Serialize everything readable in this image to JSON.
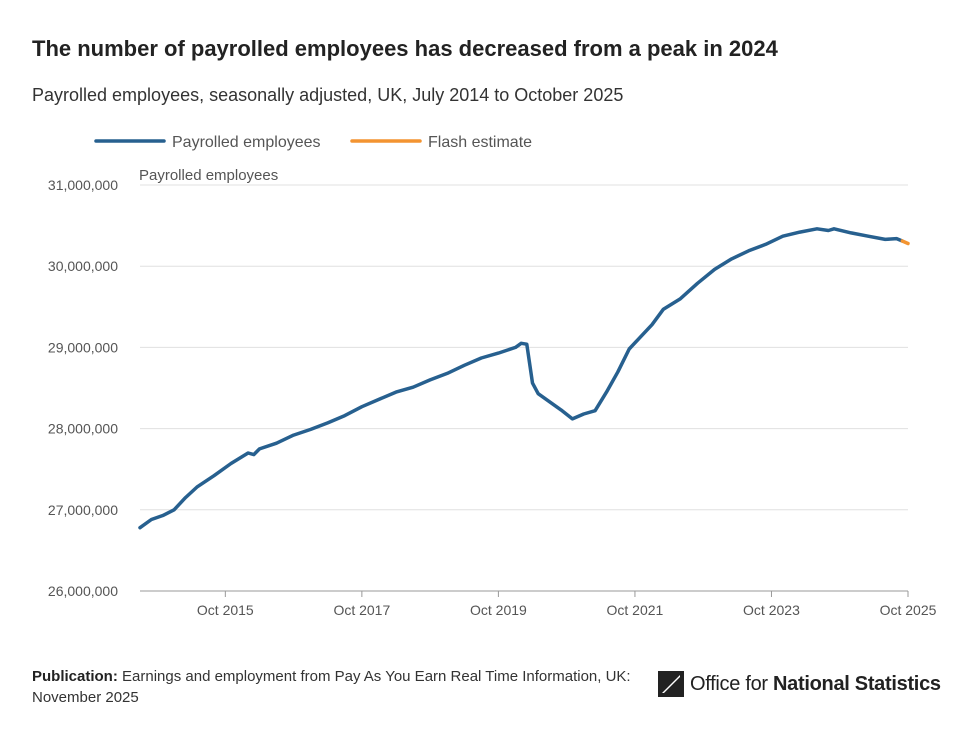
{
  "title": "The number of payrolled employees has decreased from a peak in 2024",
  "subtitle": "Payrolled employees, seasonally adjusted, UK, July 2014 to October 2025",
  "footer": {
    "publication_label": "Publication:",
    "publication_text": "Earnings and employment from Pay As You Earn Real Time Information, UK: November 2025"
  },
  "logo": {
    "icon": "ons-logo-icon",
    "text_regular": "Office for ",
    "text_bold": "National Statistics"
  },
  "colors": {
    "series_main": "#27608f",
    "series_flash": "#f39431",
    "gridline": "#e0e0e0",
    "axis_text": "#555555"
  },
  "chart_data": {
    "type": "line",
    "ylabel": "Payrolled employees",
    "ylim": [
      26000000,
      31000000
    ],
    "yticks": [
      26000000,
      27000000,
      28000000,
      29000000,
      30000000,
      31000000
    ],
    "ytick_labels": [
      "26,000,000",
      "27,000,000",
      "28,000,000",
      "29,000,000",
      "30,000,000",
      "31,000,000"
    ],
    "xlim": [
      "2014-07",
      "2025-10"
    ],
    "xticks": [
      "2015-10",
      "2017-10",
      "2019-10",
      "2021-10",
      "2023-10",
      "2025-10"
    ],
    "xtick_labels": [
      "Oct 2015",
      "Oct 2017",
      "Oct 2019",
      "Oct 2021",
      "Oct 2023",
      "Oct 2025"
    ],
    "grid": true,
    "legend_position": "top-left",
    "series": [
      {
        "name": "Payrolled employees",
        "points": [
          [
            "2014-07",
            26780000
          ],
          [
            "2014-09",
            26880000
          ],
          [
            "2014-11",
            26930000
          ],
          [
            "2015-01",
            27000000
          ],
          [
            "2015-03",
            27150000
          ],
          [
            "2015-05",
            27280000
          ],
          [
            "2015-08",
            27420000
          ],
          [
            "2015-11",
            27570000
          ],
          [
            "2016-02",
            27700000
          ],
          [
            "2016-03",
            27680000
          ],
          [
            "2016-04",
            27750000
          ],
          [
            "2016-07",
            27820000
          ],
          [
            "2016-10",
            27920000
          ],
          [
            "2017-01",
            27990000
          ],
          [
            "2017-04",
            28070000
          ],
          [
            "2017-07",
            28160000
          ],
          [
            "2017-10",
            28270000
          ],
          [
            "2018-01",
            28360000
          ],
          [
            "2018-04",
            28450000
          ],
          [
            "2018-07",
            28510000
          ],
          [
            "2018-10",
            28600000
          ],
          [
            "2019-01",
            28680000
          ],
          [
            "2019-04",
            28780000
          ],
          [
            "2019-07",
            28870000
          ],
          [
            "2019-10",
            28930000
          ],
          [
            "2020-01",
            29000000
          ],
          [
            "2020-02",
            29050000
          ],
          [
            "2020-03",
            29040000
          ],
          [
            "2020-04",
            28560000
          ],
          [
            "2020-05",
            28430000
          ],
          [
            "2020-07",
            28330000
          ],
          [
            "2020-09",
            28230000
          ],
          [
            "2020-11",
            28120000
          ],
          [
            "2021-01",
            28180000
          ],
          [
            "2021-03",
            28220000
          ],
          [
            "2021-05",
            28450000
          ],
          [
            "2021-07",
            28700000
          ],
          [
            "2021-09",
            28980000
          ],
          [
            "2021-11",
            29130000
          ],
          [
            "2022-01",
            29280000
          ],
          [
            "2022-03",
            29470000
          ],
          [
            "2022-06",
            29600000
          ],
          [
            "2022-09",
            29790000
          ],
          [
            "2022-12",
            29960000
          ],
          [
            "2023-03",
            30090000
          ],
          [
            "2023-06",
            30190000
          ],
          [
            "2023-09",
            30270000
          ],
          [
            "2023-12",
            30370000
          ],
          [
            "2024-03",
            30420000
          ],
          [
            "2024-06",
            30460000
          ],
          [
            "2024-08",
            30440000
          ],
          [
            "2024-09",
            30460000
          ],
          [
            "2024-12",
            30410000
          ],
          [
            "2025-03",
            30370000
          ],
          [
            "2025-06",
            30330000
          ],
          [
            "2025-08",
            30340000
          ],
          [
            "2025-09",
            30310000
          ]
        ]
      },
      {
        "name": "Flash estimate",
        "points": [
          [
            "2025-09",
            30310000
          ],
          [
            "2025-10",
            30280000
          ]
        ]
      }
    ]
  }
}
